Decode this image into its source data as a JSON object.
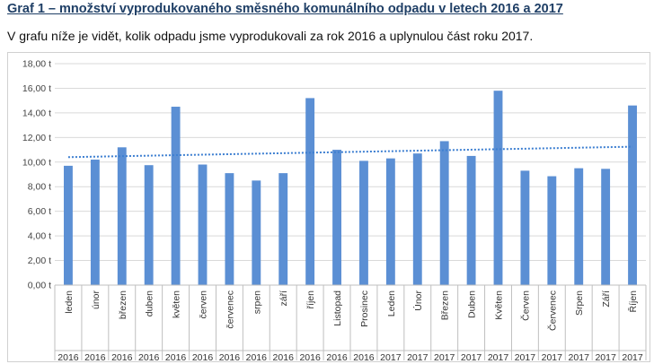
{
  "heading": "Graf 1 – množství vyprodukovaného směsného komunálního odpadu v letech 2016 a 2017",
  "subtitle": "V grafu níže je vidět, kolik odpadu jsme vyprodukovali za rok 2016 a uplynulou část roku 2017.",
  "colors": {
    "bar": "#5b8fd4",
    "trend": "#3d7fd1",
    "grid": "#d9d9d9",
    "heading": "#1f3f66"
  },
  "chart_data": {
    "type": "bar",
    "title": "",
    "xlabel": "",
    "ylabel": "",
    "ylim": [
      0,
      18
    ],
    "yticks": [
      0,
      2,
      4,
      6,
      8,
      10,
      12,
      14,
      16,
      18
    ],
    "ytick_labels": [
      "0,00 t",
      "2,00 t",
      "4,00 t",
      "6,00 t",
      "8,00 t",
      "10,00 t",
      "12,00 t",
      "14,00 t",
      "16,00 t",
      "18,00 t"
    ],
    "grid": true,
    "legend": "none",
    "categories": [
      "leden",
      "únor",
      "březen",
      "duben",
      "květen",
      "červen",
      "červenec",
      "srpen",
      "září",
      "říjen",
      "Listopad",
      "Prosinec",
      "Leden",
      "Únor",
      "Březen",
      "Duben",
      "Květen",
      "Červen",
      "Červenec",
      "Srpen",
      "Září",
      "Říjen"
    ],
    "years": [
      "2016",
      "2016",
      "2016",
      "2016",
      "2016",
      "2016",
      "2016",
      "2016",
      "2016",
      "2016",
      "2016",
      "2016",
      "2017",
      "2017",
      "2017",
      "2017",
      "2017",
      "2017",
      "2017",
      "2017",
      "2017",
      "2017"
    ],
    "values": [
      9.7,
      10.2,
      11.2,
      9.75,
      14.5,
      9.8,
      9.1,
      8.5,
      9.1,
      15.2,
      11.0,
      10.1,
      10.3,
      10.7,
      11.7,
      10.5,
      15.8,
      9.3,
      8.85,
      9.5,
      9.45,
      14.6
    ],
    "trendline": {
      "type": "linear",
      "start": 10.4,
      "end": 11.25
    }
  }
}
